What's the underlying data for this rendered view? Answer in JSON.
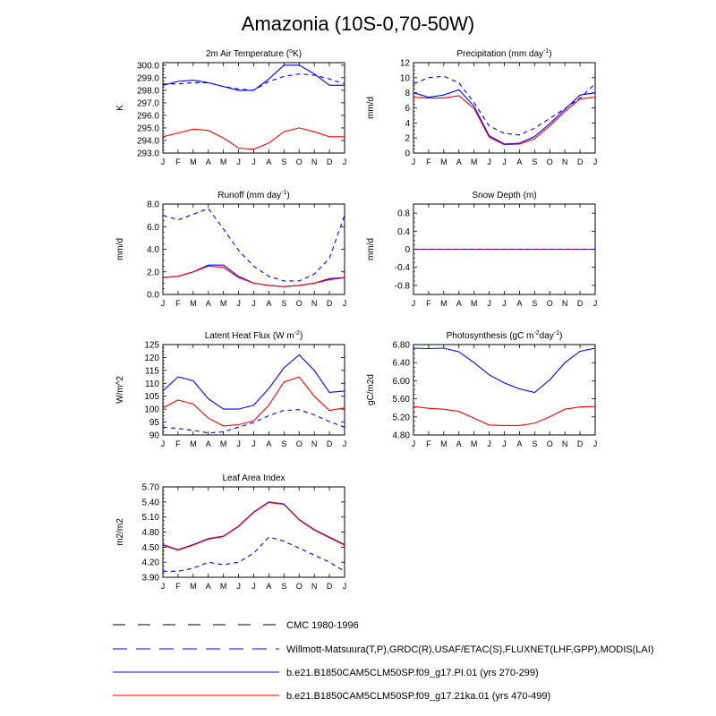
{
  "title": "Amazonia (10S-0,70-50W)",
  "months": [
    "J",
    "F",
    "M",
    "A",
    "M",
    "J",
    "J",
    "A",
    "S",
    "O",
    "N",
    "D",
    "J"
  ],
  "colors": {
    "obs": "#0000ff",
    "case1": "#0000ff",
    "case2": "#ff0000",
    "cmc": "#000000"
  },
  "legend": [
    {
      "key": "cmc",
      "label": "CMC 1980-1996",
      "style": "dash",
      "color": "#000000"
    },
    {
      "key": "obs",
      "label": "Willmott-Matsuura(T,P),GRDC(R),USAF/ETAC(S),FLUXNET(LHF,GPP),MODIS(LAI)",
      "style": "dash",
      "color": "#0000ff"
    },
    {
      "key": "case1",
      "label": "b.e21.B1850CAM5CLM50SP.f09_g17.PI.01 (yrs 270-299)",
      "style": "solid",
      "color": "#0000ff"
    },
    {
      "key": "case2",
      "label": "b.e21.B1850CAM5CLM50SP.f09_g17.21ka.01 (yrs 470-499)",
      "style": "solid",
      "color": "#ff0000"
    }
  ],
  "chart_data": [
    {
      "type": "line",
      "title": "2m Air Temperature (°K)",
      "title_parts": [
        [
          "2m Air Temperature (",
          ""
        ],
        [
          "o",
          "sup"
        ],
        [
          "K)",
          ""
        ]
      ],
      "ylabel": "K",
      "ylim": [
        293,
        300.2
      ],
      "yticks": [
        293.0,
        294.0,
        295.0,
        296.0,
        297.0,
        298.0,
        299.0,
        300.0
      ],
      "ytick_labels": [
        "293.0",
        "294.0",
        "295.0",
        "296.0",
        "297.0",
        "298.0",
        "299.0",
        "300.0"
      ],
      "series": [
        {
          "name": "obs",
          "style": "dash",
          "color": "#0000ff",
          "values": [
            298.5,
            298.5,
            298.6,
            298.6,
            298.3,
            298.1,
            298.0,
            298.7,
            299.1,
            299.3,
            299.2,
            298.9,
            298.5
          ]
        },
        {
          "name": "case1",
          "style": "solid",
          "color": "#0000ff",
          "values": [
            298.4,
            298.7,
            298.8,
            298.6,
            298.3,
            298.0,
            298.0,
            298.9,
            300.0,
            300.0,
            299.3,
            298.4,
            298.4
          ]
        },
        {
          "name": "case2",
          "style": "solid",
          "color": "#ff0000",
          "values": [
            294.3,
            294.6,
            294.9,
            294.8,
            294.2,
            293.4,
            293.3,
            293.8,
            294.7,
            295.0,
            294.7,
            294.3,
            294.3
          ]
        }
      ]
    },
    {
      "type": "line",
      "title": "Precipitation (mm day-1)",
      "title_parts": [
        [
          "Precipitation (mm day",
          ""
        ],
        [
          "-1",
          "sup"
        ],
        [
          ")",
          ""
        ]
      ],
      "ylabel": "mm/d",
      "ylim": [
        0,
        12
      ],
      "yticks": [
        0,
        2,
        4,
        6,
        8,
        10,
        12
      ],
      "ytick_labels": [
        "0",
        "2",
        "4",
        "6",
        "8",
        "10",
        "12"
      ],
      "series": [
        {
          "name": "obs",
          "style": "dash",
          "color": "#0000ff",
          "values": [
            9.2,
            10.0,
            10.2,
            9.3,
            6.7,
            3.6,
            2.6,
            2.4,
            3.3,
            4.6,
            5.9,
            7.3,
            9.2
          ]
        },
        {
          "name": "case1",
          "style": "solid",
          "color": "#0000ff",
          "values": [
            8.0,
            7.4,
            7.7,
            8.4,
            6.2,
            2.3,
            1.2,
            1.3,
            2.2,
            3.9,
            5.8,
            7.7,
            8.0
          ]
        },
        {
          "name": "case2",
          "style": "solid",
          "color": "#ff0000",
          "values": [
            7.4,
            7.3,
            7.3,
            7.6,
            5.9,
            2.1,
            1.1,
            1.2,
            1.9,
            3.6,
            5.5,
            7.2,
            7.4
          ]
        }
      ]
    },
    {
      "type": "line",
      "title": "Runoff (mm day-1)",
      "title_parts": [
        [
          "Runoff (mm day",
          ""
        ],
        [
          "-1",
          "sup"
        ],
        [
          ")",
          ""
        ]
      ],
      "ylabel": "mm/d",
      "ylim": [
        0,
        8
      ],
      "yticks": [
        0,
        2,
        4,
        6,
        8
      ],
      "ytick_labels": [
        "0.0",
        "2.0",
        "4.0",
        "6.0",
        "8.0"
      ],
      "series": [
        {
          "name": "obs",
          "style": "dash",
          "color": "#0000ff",
          "values": [
            7.0,
            6.6,
            7.1,
            7.6,
            5.8,
            3.9,
            2.5,
            1.6,
            1.2,
            1.2,
            1.8,
            3.2,
            7.0
          ]
        },
        {
          "name": "case1",
          "style": "solid",
          "color": "#0000ff",
          "values": [
            1.5,
            1.6,
            2.0,
            2.6,
            2.6,
            1.6,
            1.0,
            0.8,
            0.7,
            0.8,
            1.0,
            1.4,
            1.5
          ]
        },
        {
          "name": "case2",
          "style": "solid",
          "color": "#ff0000",
          "values": [
            1.5,
            1.6,
            2.0,
            2.5,
            2.4,
            1.5,
            1.0,
            0.8,
            0.7,
            0.8,
            1.0,
            1.3,
            1.5
          ]
        }
      ]
    },
    {
      "type": "line",
      "title": "Snow Depth (m)",
      "title_parts": [
        [
          "Snow Depth (m)",
          ""
        ]
      ],
      "ylabel": "mm/d",
      "ylim": [
        -1,
        1
      ],
      "yticks": [
        -0.8,
        -0.4,
        0,
        0.4,
        0.8
      ],
      "ytick_labels": [
        "-0.8",
        "-0.4",
        "0",
        "0.4",
        "0.8"
      ],
      "series": [
        {
          "name": "case1",
          "style": "solid",
          "color": "#0000ff",
          "values": [
            0,
            0,
            0,
            0,
            0,
            0,
            0,
            0,
            0,
            0,
            0,
            0,
            0
          ]
        },
        {
          "name": "case2",
          "style": "solid",
          "color": "#ff0000",
          "values": [
            0,
            0,
            0,
            0,
            0,
            0,
            0,
            0,
            0,
            0,
            0,
            0,
            0
          ]
        },
        {
          "name": "obs",
          "style": "dash",
          "color": "#0000ff",
          "values": [
            0,
            0,
            0,
            0,
            0,
            0,
            0,
            0,
            0,
            0,
            0,
            0,
            0
          ]
        }
      ]
    },
    {
      "type": "line",
      "title": "Latent Heat Flux (W m-2)",
      "title_parts": [
        [
          "Latent Heat Flux (W m",
          ""
        ],
        [
          "-2",
          "sup"
        ],
        [
          ")",
          ""
        ]
      ],
      "ylabel": "W/m^2",
      "ylim": [
        90,
        125
      ],
      "yticks": [
        90,
        95,
        100,
        105,
        110,
        115,
        120,
        125
      ],
      "ytick_labels": [
        "90",
        "95",
        "100",
        "105",
        "110",
        "115",
        "120",
        "125"
      ],
      "series": [
        {
          "name": "obs",
          "style": "dash",
          "color": "#0000ff",
          "values": [
            93.0,
            92.5,
            91.8,
            90.8,
            91.2,
            93.0,
            94.8,
            97.5,
            99.5,
            99.8,
            97.8,
            95.2,
            93.0
          ]
        },
        {
          "name": "case1",
          "style": "solid",
          "color": "#0000ff",
          "values": [
            107.0,
            112.5,
            111.0,
            104.0,
            100.0,
            100.0,
            101.5,
            108.0,
            116.0,
            121.0,
            115.0,
            106.5,
            107.0
          ]
        },
        {
          "name": "case2",
          "style": "solid",
          "color": "#ff0000",
          "values": [
            100.5,
            103.5,
            102.0,
            96.5,
            93.5,
            94.0,
            95.5,
            101.5,
            110.5,
            112.5,
            105.0,
            99.5,
            100.5
          ]
        }
      ]
    },
    {
      "type": "line",
      "title": "Photosynthesis (gC m-2 day-1)",
      "title_parts": [
        [
          "Photosynthesis (gC m",
          ""
        ],
        [
          "-2",
          "sup"
        ],
        [
          "day",
          ""
        ],
        [
          "-1",
          "sup"
        ],
        [
          ")",
          ""
        ]
      ],
      "ylabel": "gC/m2d",
      "ylim": [
        4.8,
        6.8
      ],
      "yticks": [
        4.8,
        5.2,
        5.6,
        6.0,
        6.4,
        6.8
      ],
      "ytick_labels": [
        "4.80",
        "5.20",
        "5.60",
        "6.00",
        "6.40",
        "6.80"
      ],
      "series": [
        {
          "name": "case1",
          "style": "solid",
          "color": "#0000ff",
          "values": [
            6.72,
            6.71,
            6.72,
            6.64,
            6.4,
            6.13,
            5.95,
            5.82,
            5.74,
            6.02,
            6.4,
            6.65,
            6.72
          ]
        },
        {
          "name": "case2",
          "style": "solid",
          "color": "#ff0000",
          "values": [
            5.43,
            5.39,
            5.37,
            5.32,
            5.17,
            5.02,
            5.01,
            5.01,
            5.06,
            5.2,
            5.37,
            5.42,
            5.43
          ]
        }
      ]
    },
    {
      "type": "line",
      "title": "Leaf Area Index",
      "title_parts": [
        [
          "Leaf Area Index",
          ""
        ]
      ],
      "ylabel": "m2/m2",
      "ylim": [
        3.9,
        5.7
      ],
      "yticks": [
        3.9,
        4.2,
        4.5,
        4.8,
        5.1,
        5.4,
        5.7
      ],
      "ytick_labels": [
        "3.90",
        "4.20",
        "4.50",
        "4.80",
        "5.10",
        "5.40",
        "5.70"
      ],
      "series": [
        {
          "name": "obs",
          "style": "dash",
          "color": "#0000ff",
          "values": [
            4.02,
            4.02,
            4.08,
            4.2,
            4.15,
            4.2,
            4.38,
            4.7,
            4.62,
            4.48,
            4.34,
            4.2,
            4.02
          ]
        },
        {
          "name": "case1",
          "style": "solid",
          "color": "#0000ff",
          "values": [
            4.55,
            4.45,
            4.55,
            4.67,
            4.72,
            4.92,
            5.2,
            5.4,
            5.36,
            5.05,
            4.85,
            4.7,
            4.55
          ]
        },
        {
          "name": "case2",
          "style": "solid",
          "color": "#ff0000",
          "values": [
            4.54,
            4.44,
            4.54,
            4.66,
            4.71,
            4.91,
            5.19,
            5.39,
            5.35,
            5.04,
            4.84,
            4.69,
            4.54
          ]
        }
      ]
    }
  ]
}
